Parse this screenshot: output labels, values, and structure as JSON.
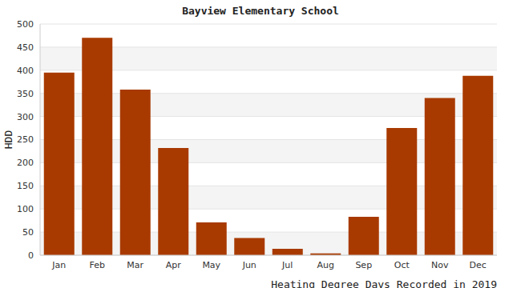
{
  "chart_data": {
    "type": "bar",
    "title": "Bayview Elementary School",
    "x_label": "Heating Degree Days Recorded in 2019",
    "y_label": "HDD",
    "categories": [
      "Jan",
      "Feb",
      "Mar",
      "Apr",
      "May",
      "Jun",
      "Jul",
      "Aug",
      "Sep",
      "Oct",
      "Nov",
      "Dec"
    ],
    "values": [
      395,
      470,
      358,
      232,
      71,
      37,
      14,
      4,
      83,
      275,
      340,
      388
    ],
    "color": "#a83a00",
    "ylim": [
      0,
      500
    ],
    "yticks": [
      0,
      50,
      100,
      150,
      200,
      250,
      300,
      350,
      400,
      450,
      500
    ],
    "grid": true
  }
}
